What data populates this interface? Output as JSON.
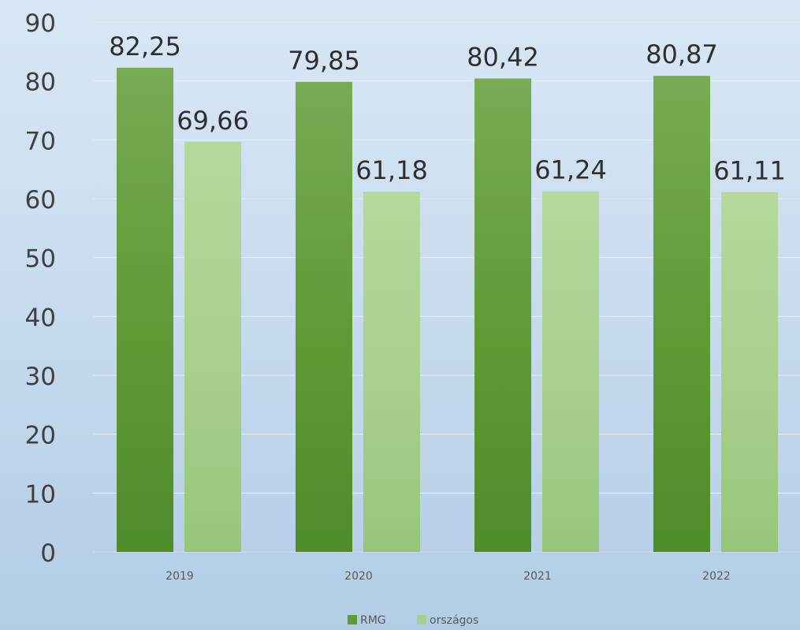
{
  "chart_data": {
    "type": "bar",
    "categories": [
      "2019",
      "2020",
      "2021",
      "2022"
    ],
    "series": [
      {
        "name": "RMG",
        "values": [
          82.25,
          79.85,
          80.42,
          80.87
        ],
        "labels": [
          "82,25",
          "79,85",
          "80,42",
          "80,87"
        ],
        "color": "#5f9a35"
      },
      {
        "name": "országos",
        "values": [
          69.66,
          61.18,
          61.24,
          61.11
        ],
        "labels": [
          "69,66",
          "61,18",
          "61,24",
          "61,11"
        ],
        "color": "#a9d18e"
      }
    ],
    "ylim": [
      0,
      90
    ],
    "yticks": [
      "0",
      "10",
      "20",
      "30",
      "40",
      "50",
      "60",
      "70",
      "80",
      "90"
    ],
    "grid": true,
    "legend_position": "bottom",
    "background_color": "#c9dcef"
  }
}
